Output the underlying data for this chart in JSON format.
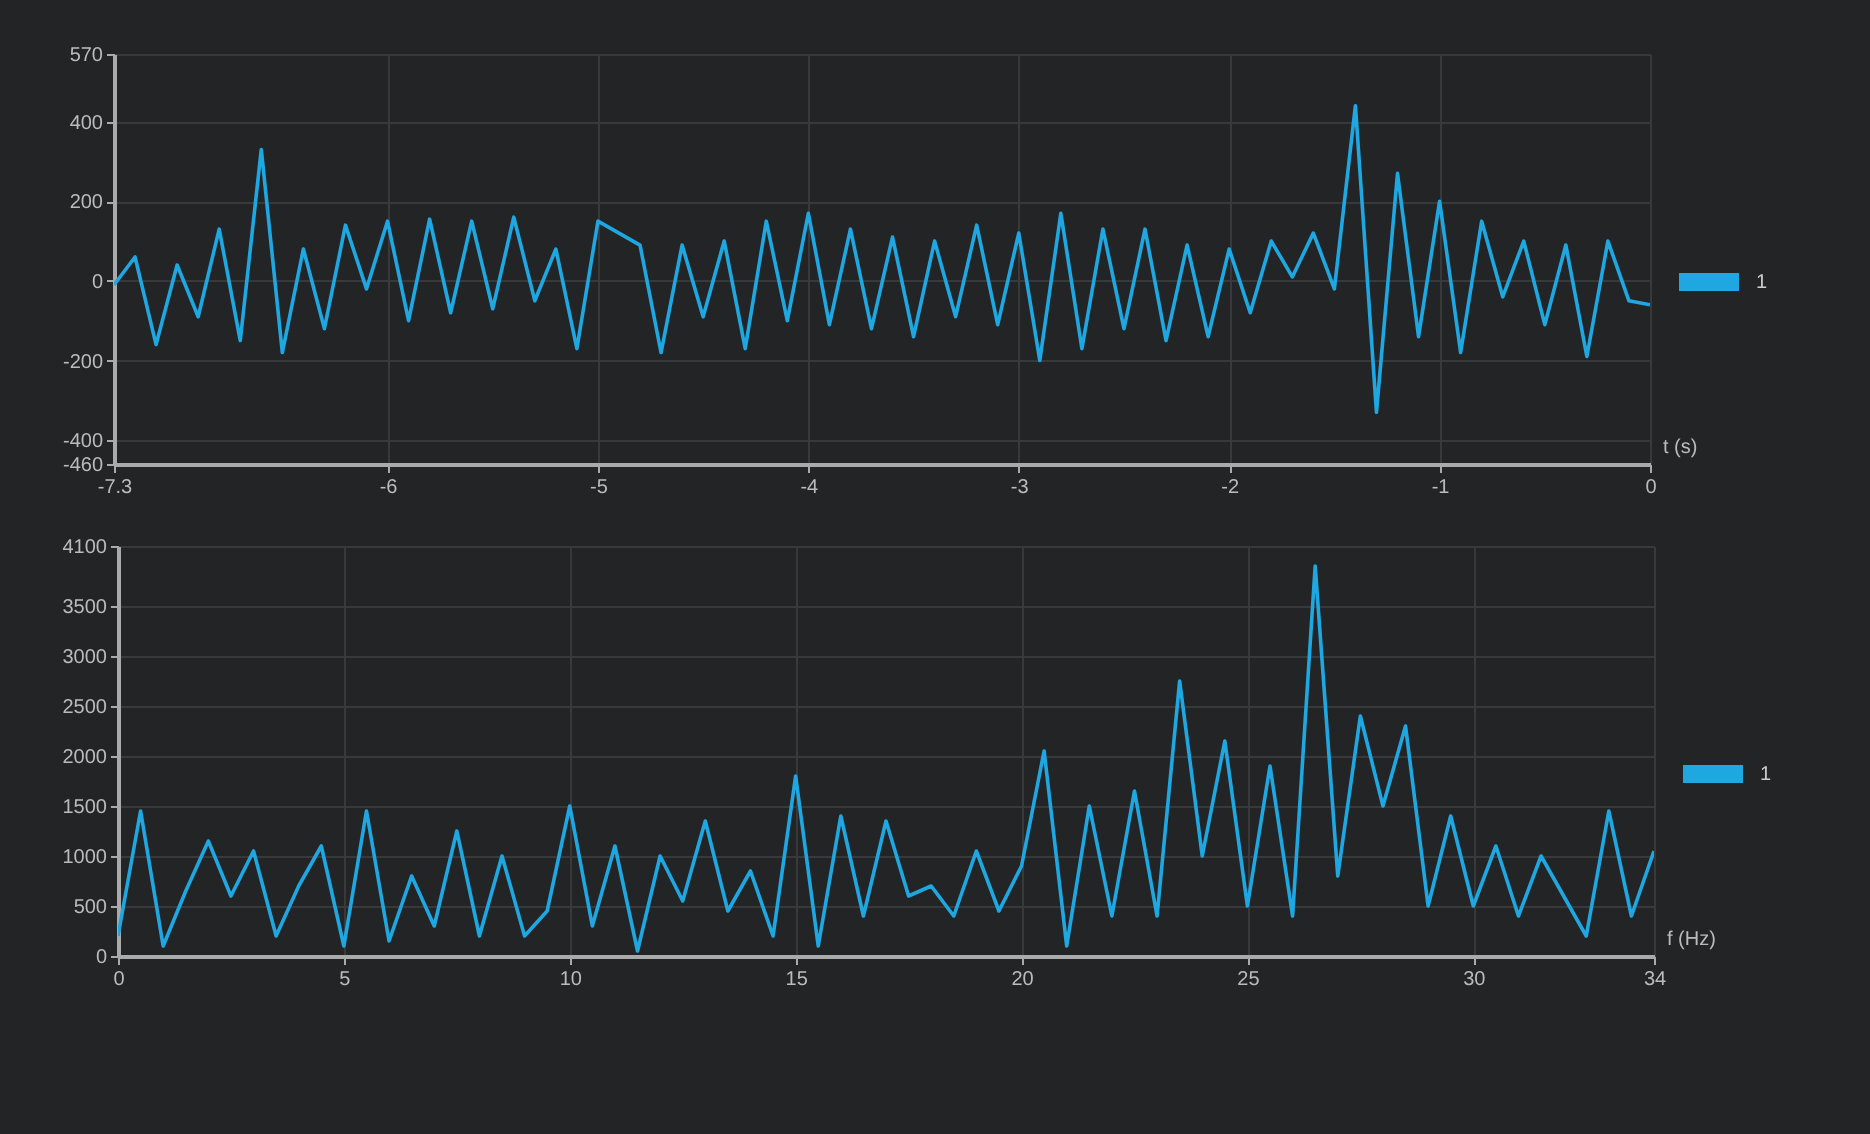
{
  "chart_data": [
    {
      "type": "line",
      "xlabel": "t (s)",
      "xlim": [
        -7.3,
        0
      ],
      "xticks": [
        -7.3,
        -6,
        -5,
        -4,
        -3,
        -2,
        -1,
        0
      ],
      "ylim": [
        -460,
        570
      ],
      "yticks": [
        -460,
        -400,
        -200,
        0,
        200,
        400,
        570
      ],
      "grid": true,
      "legend": "right",
      "x": [
        -7.3,
        -7.2,
        -7.1,
        -7.0,
        -6.9,
        -6.8,
        -6.7,
        -6.6,
        -6.5,
        -6.4,
        -6.3,
        -6.2,
        -6.1,
        -6.0,
        -5.9,
        -5.8,
        -5.7,
        -5.6,
        -5.5,
        -5.4,
        -5.3,
        -5.2,
        -5.1,
        -5.0,
        -4.9,
        -4.8,
        -4.7,
        -4.6,
        -4.5,
        -4.4,
        -4.3,
        -4.2,
        -4.1,
        -4.0,
        -3.9,
        -3.8,
        -3.7,
        -3.6,
        -3.5,
        -3.4,
        -3.3,
        -3.2,
        -3.1,
        -3.0,
        -2.9,
        -2.8,
        -2.7,
        -2.6,
        -2.5,
        -2.4,
        -2.3,
        -2.2,
        -2.1,
        -2.0,
        -1.9,
        -1.8,
        -1.7,
        -1.6,
        -1.5,
        -1.4,
        -1.3,
        -1.2,
        -1.1,
        -1.0,
        -0.9,
        -0.8,
        -0.7,
        -0.6,
        -0.5,
        -0.4,
        -0.3,
        -0.2,
        -0.1,
        0
      ],
      "series": [
        {
          "name": "1",
          "color": "#1ea7e1",
          "values": [
            -10,
            60,
            -160,
            40,
            -90,
            130,
            -150,
            330,
            -180,
            80,
            -120,
            140,
            -20,
            150,
            -100,
            155,
            -80,
            150,
            -70,
            160,
            -50,
            80,
            -170,
            150,
            120,
            90,
            -180,
            90,
            -90,
            100,
            -170,
            150,
            -100,
            170,
            -110,
            130,
            -120,
            110,
            -140,
            100,
            -90,
            140,
            -110,
            120,
            -200,
            170,
            -170,
            130,
            -120,
            130,
            -150,
            90,
            -140,
            80,
            -80,
            100,
            10,
            120,
            -20,
            440,
            -330,
            270,
            -140,
            200,
            -180,
            150,
            -40,
            100,
            -110,
            90,
            -190,
            100,
            -50,
            -60
          ]
        }
      ]
    },
    {
      "type": "line",
      "xlabel": "f (Hz)",
      "xlim": [
        0,
        34
      ],
      "xticks": [
        0,
        5,
        10,
        15,
        20,
        25,
        30,
        34
      ],
      "ylim": [
        0,
        4100
      ],
      "yticks": [
        0,
        500,
        1000,
        1500,
        2000,
        2500,
        3000,
        3500,
        4100
      ],
      "grid": true,
      "legend": "right",
      "x": [
        0,
        0.5,
        1,
        1.5,
        2,
        2.5,
        3,
        3.5,
        4,
        4.5,
        5,
        5.5,
        6,
        6.5,
        7,
        7.5,
        8,
        8.5,
        9,
        9.5,
        10,
        10.5,
        11,
        11.5,
        12,
        12.5,
        13,
        13.5,
        14,
        14.5,
        15,
        15.5,
        16,
        16.5,
        17,
        17.5,
        18,
        18.5,
        19,
        19.5,
        20,
        20.5,
        21,
        21.5,
        22,
        22.5,
        23,
        23.5,
        24,
        24.5,
        25,
        25.5,
        26,
        26.5,
        27,
        27.5,
        28,
        28.5,
        29,
        29.5,
        30,
        30.5,
        31,
        31.5,
        32,
        32.5,
        33,
        33.5,
        34
      ],
      "series": [
        {
          "name": "1",
          "color": "#1ea7e1",
          "values": [
            200,
            1450,
            100,
            650,
            1150,
            600,
            1050,
            200,
            700,
            1100,
            100,
            1450,
            150,
            800,
            300,
            1250,
            200,
            1000,
            200,
            450,
            1500,
            300,
            1100,
            50,
            1000,
            550,
            1350,
            450,
            850,
            200,
            1800,
            100,
            1400,
            400,
            1350,
            600,
            700,
            400,
            1050,
            450,
            900,
            2050,
            100,
            1500,
            400,
            1650,
            400,
            2750,
            1000,
            2150,
            500,
            1900,
            400,
            3900,
            800,
            2400,
            1500,
            2300,
            500,
            1400,
            500,
            1100,
            400,
            1000,
            600,
            200,
            1450,
            400,
            1050
          ]
        }
      ]
    }
  ]
}
